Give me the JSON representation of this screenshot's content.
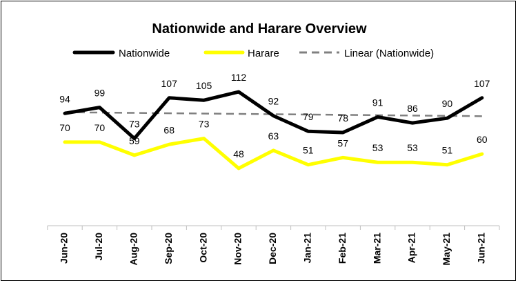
{
  "chart_data": {
    "type": "line",
    "title": "Nationwide and Harare Overview",
    "categories": [
      "Jun-20",
      "Jul-20",
      "Aug-20",
      "Sep-20",
      "Oct-20",
      "Nov-20",
      "Dec-20",
      "Jan-21",
      "Feb-21",
      "Mar-21",
      "Apr-21",
      "May-21",
      "Jun-21"
    ],
    "series": [
      {
        "name": "Nationwide",
        "values": [
          94,
          99,
          73,
          107,
          105,
          112,
          92,
          79,
          78,
          91,
          86,
          90,
          107
        ],
        "color": "#000000"
      },
      {
        "name": "Harare",
        "values": [
          70,
          70,
          59,
          68,
          73,
          48,
          63,
          51,
          57,
          53,
          53,
          51,
          60
        ],
        "color": "#FFFF00"
      }
    ],
    "trendline": {
      "name": "Linear (Nationwide)",
      "color": "#808080",
      "style": "dashed",
      "of_series": "Nationwide"
    },
    "legend_position": "top",
    "grid": false,
    "ylim": [
      0,
      160
    ]
  }
}
